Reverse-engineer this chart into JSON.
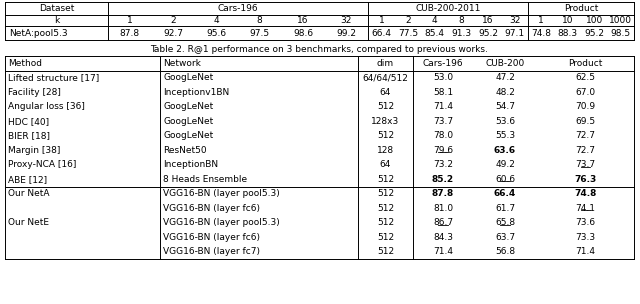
{
  "fig_width": 6.4,
  "fig_height": 3.04,
  "dpi": 100,
  "caption": "Table 2. R@1 performance on 3 benchmarks, compared to previous works.",
  "table1": {
    "row_label": "NetA:pool5.3",
    "k_cars": [
      "1",
      "2",
      "4",
      "8",
      "16",
      "32"
    ],
    "k_cub": [
      "1",
      "2",
      "4",
      "8",
      "16",
      "32"
    ],
    "k_prod": [
      "1",
      "10",
      "100",
      "1000"
    ],
    "vals_cars": [
      "87.8",
      "92.7",
      "95.6",
      "97.5",
      "98.6",
      "99.2"
    ],
    "vals_cub": [
      "66.4",
      "77.5",
      "85.4",
      "91.3",
      "95.2",
      "97.1"
    ],
    "vals_prod": [
      "74.8",
      "88.3",
      "95.2",
      "98.5"
    ]
  },
  "table2_rows": [
    {
      "method": "Lifted structure [17]",
      "network": "GoogLeNet",
      "dim": "64/64/512",
      "cars196": "53.0",
      "cub200": "47.2",
      "product": "62.5",
      "bc": false,
      "bu": false,
      "bp": false,
      "uc": false,
      "uu": false,
      "up": false,
      "group": "prior"
    },
    {
      "method": "Facility [28]",
      "network": "Inceptionv1BN",
      "dim": "64",
      "cars196": "58.1",
      "cub200": "48.2",
      "product": "67.0",
      "bc": false,
      "bu": false,
      "bp": false,
      "uc": false,
      "uu": false,
      "up": false,
      "group": "prior"
    },
    {
      "method": "Angular loss [36]",
      "network": "GoogLeNet",
      "dim": "512",
      "cars196": "71.4",
      "cub200": "54.7",
      "product": "70.9",
      "bc": false,
      "bu": false,
      "bp": false,
      "uc": false,
      "uu": false,
      "up": false,
      "group": "prior"
    },
    {
      "method": "HDC [40]",
      "network": "GoogLeNet",
      "dim": "128x3",
      "cars196": "73.7",
      "cub200": "53.6",
      "product": "69.5",
      "bc": false,
      "bu": false,
      "bp": false,
      "uc": false,
      "uu": false,
      "up": false,
      "group": "prior"
    },
    {
      "method": "BIER [18]",
      "network": "GoogLeNet",
      "dim": "512",
      "cars196": "78.0",
      "cub200": "55.3",
      "product": "72.7",
      "bc": false,
      "bu": false,
      "bp": false,
      "uc": false,
      "uu": false,
      "up": false,
      "group": "prior"
    },
    {
      "method": "Margin [38]",
      "network": "ResNet50",
      "dim": "128",
      "cars196": "79.6",
      "cub200": "63.6",
      "product": "72.7",
      "bc": false,
      "bu": true,
      "bp": false,
      "uc": true,
      "uu": false,
      "up": false,
      "group": "prior"
    },
    {
      "method": "Proxy-NCA [16]",
      "network": "InceptionBN",
      "dim": "64",
      "cars196": "73.2",
      "cub200": "49.2",
      "product": "73.7",
      "bc": false,
      "bu": false,
      "bp": false,
      "uc": false,
      "uu": false,
      "up": true,
      "group": "prior"
    },
    {
      "method": "ABE [12]",
      "network": "8 Heads Ensemble",
      "dim": "512",
      "cars196": "85.2",
      "cub200": "60.6",
      "product": "76.3",
      "bc": true,
      "bu": false,
      "bp": true,
      "uc": false,
      "uu": true,
      "up": false,
      "group": "prior"
    },
    {
      "method": "Our NetA",
      "network": "VGG16-BN (layer pool5.3)",
      "dim": "512",
      "cars196": "87.8",
      "cub200": "66.4",
      "product": "74.8",
      "bc": true,
      "bu": true,
      "bp": true,
      "uc": false,
      "uu": false,
      "up": false,
      "group": "ours"
    },
    {
      "method": "",
      "network": "VGG16-BN (layer fc6)",
      "dim": "512",
      "cars196": "81.0",
      "cub200": "61.7",
      "product": "74.1",
      "bc": false,
      "bu": false,
      "bp": false,
      "uc": false,
      "uu": false,
      "up": true,
      "group": "ours"
    },
    {
      "method": "Our NetE",
      "network": "VGG16-BN (layer pool5.3)",
      "dim": "512",
      "cars196": "86.7",
      "cub200": "65.8",
      "product": "73.6",
      "bc": false,
      "bu": false,
      "bp": false,
      "uc": true,
      "uu": true,
      "up": false,
      "group": "ours"
    },
    {
      "method": "",
      "network": "VGG16-BN (layer fc6)",
      "dim": "512",
      "cars196": "84.3",
      "cub200": "63.7",
      "product": "73.3",
      "bc": false,
      "bu": false,
      "bp": false,
      "uc": false,
      "uu": false,
      "up": false,
      "group": "ours"
    },
    {
      "method": "",
      "network": "VGG16-BN (layer fc7)",
      "dim": "512",
      "cars196": "71.4",
      "cub200": "56.8",
      "product": "71.4",
      "bc": false,
      "bu": false,
      "bp": false,
      "uc": false,
      "uu": false,
      "up": false,
      "group": "ours"
    }
  ]
}
